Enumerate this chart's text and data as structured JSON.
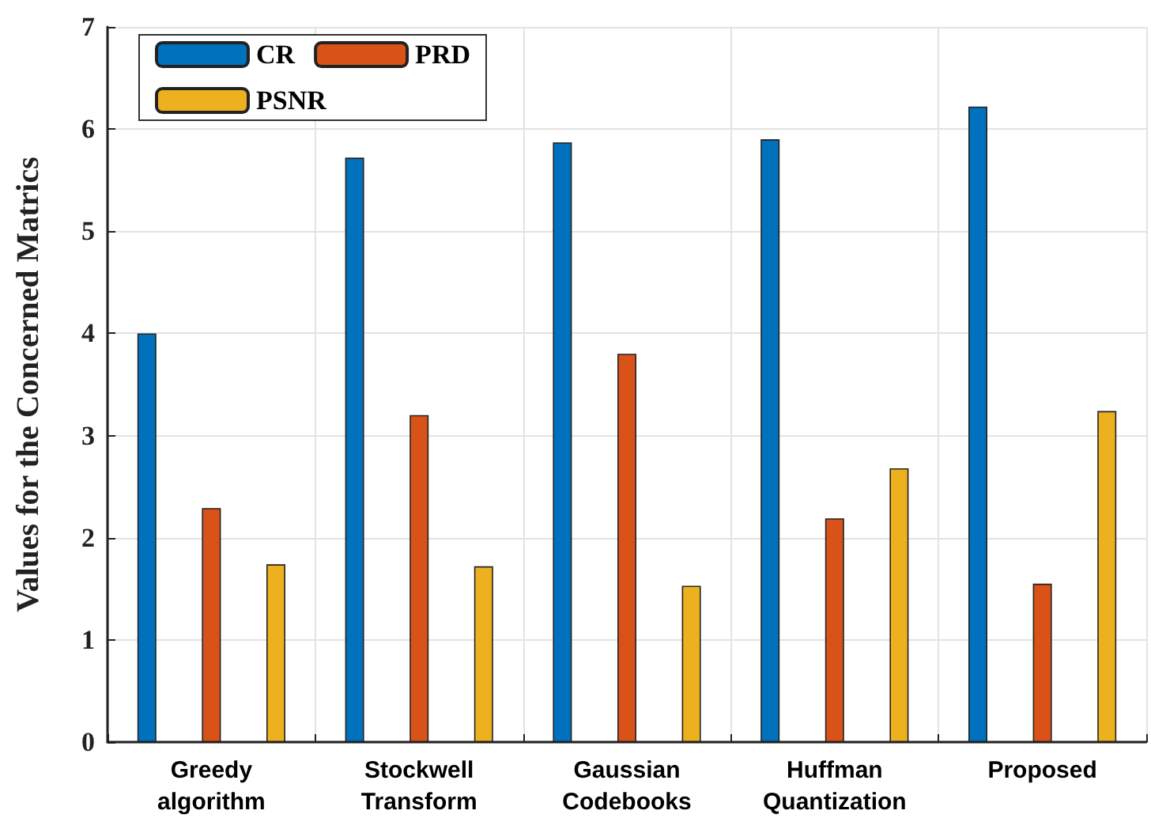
{
  "chart_data": {
    "type": "bar",
    "ylabel": "Values for the Concerned Matrics",
    "categories": [
      "Greedy\nalgorithm",
      "Stockwell\nTransform",
      "Gaussian\nCodebooks",
      "Huffman\nQuantization",
      "Proposed"
    ],
    "series": [
      {
        "name": "CR",
        "color": "#0072bd",
        "values": [
          4.0,
          5.72,
          5.87,
          5.9,
          6.22
        ]
      },
      {
        "name": "PRD",
        "color": "#d95319",
        "values": [
          2.29,
          3.2,
          3.8,
          2.19,
          1.55
        ]
      },
      {
        "name": "PSNR",
        "color": "#edb120",
        "values": [
          1.74,
          1.72,
          1.53,
          2.68,
          3.24
        ]
      }
    ],
    "ylim": [
      0,
      7
    ],
    "yticks": [
      0,
      1,
      2,
      3,
      4,
      5,
      6,
      7
    ],
    "grid": true,
    "legend": "top left"
  }
}
